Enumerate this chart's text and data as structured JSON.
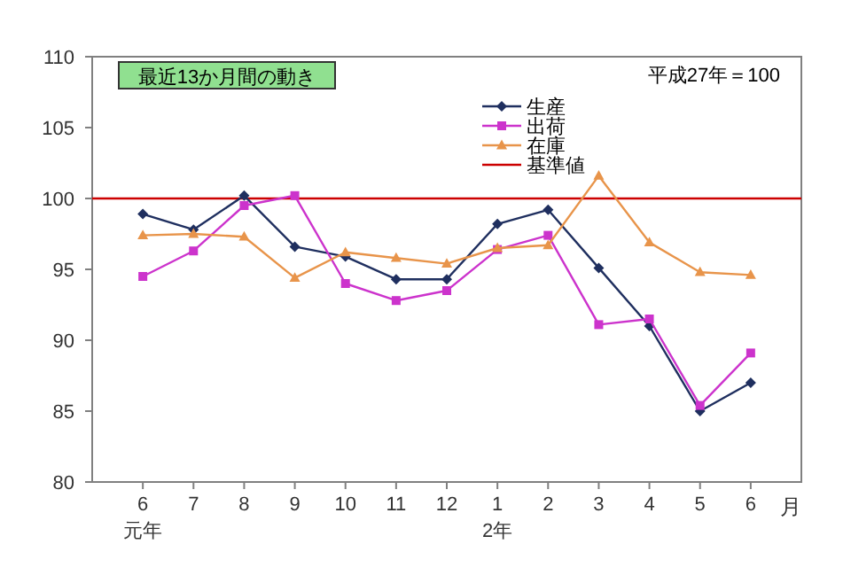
{
  "chart_data": {
    "type": "line",
    "title": "最近13か月間の動き",
    "xlabel": "月",
    "categories": [
      "6",
      "7",
      "8",
      "9",
      "10",
      "11",
      "12",
      "1",
      "2",
      "3",
      "4",
      "5",
      "6"
    ],
    "series": [
      {
        "name": "生産",
        "color": "#1f2f5f",
        "marker": "diamond",
        "values": [
          98.9,
          97.8,
          100.2,
          96.6,
          95.9,
          94.3,
          94.3,
          98.2,
          99.2,
          95.1,
          91.0,
          85.0,
          87.0
        ]
      },
      {
        "name": "出荷",
        "color": "#cc33cc",
        "marker": "square",
        "values": [
          94.5,
          96.3,
          99.5,
          100.2,
          94.0,
          92.8,
          93.5,
          96.4,
          97.4,
          91.1,
          91.5,
          85.4,
          89.1
        ]
      },
      {
        "name": "在庫",
        "color": "#e8944a",
        "marker": "triangle",
        "values": [
          97.4,
          97.5,
          97.3,
          94.4,
          96.2,
          95.8,
          95.4,
          96.5,
          96.7,
          101.6,
          96.9,
          94.8,
          94.6
        ]
      }
    ],
    "ref_lines": [
      {
        "axis": "y",
        "value": 100,
        "label": "基準値",
        "color": "#cc0000"
      }
    ],
    "ylim": [
      80,
      110
    ],
    "yticks": [
      80,
      85,
      90,
      95,
      100,
      105,
      110
    ],
    "annotations": [
      "平成27年＝100",
      "元年",
      "2年"
    ],
    "legend": "top right",
    "grid": false
  }
}
